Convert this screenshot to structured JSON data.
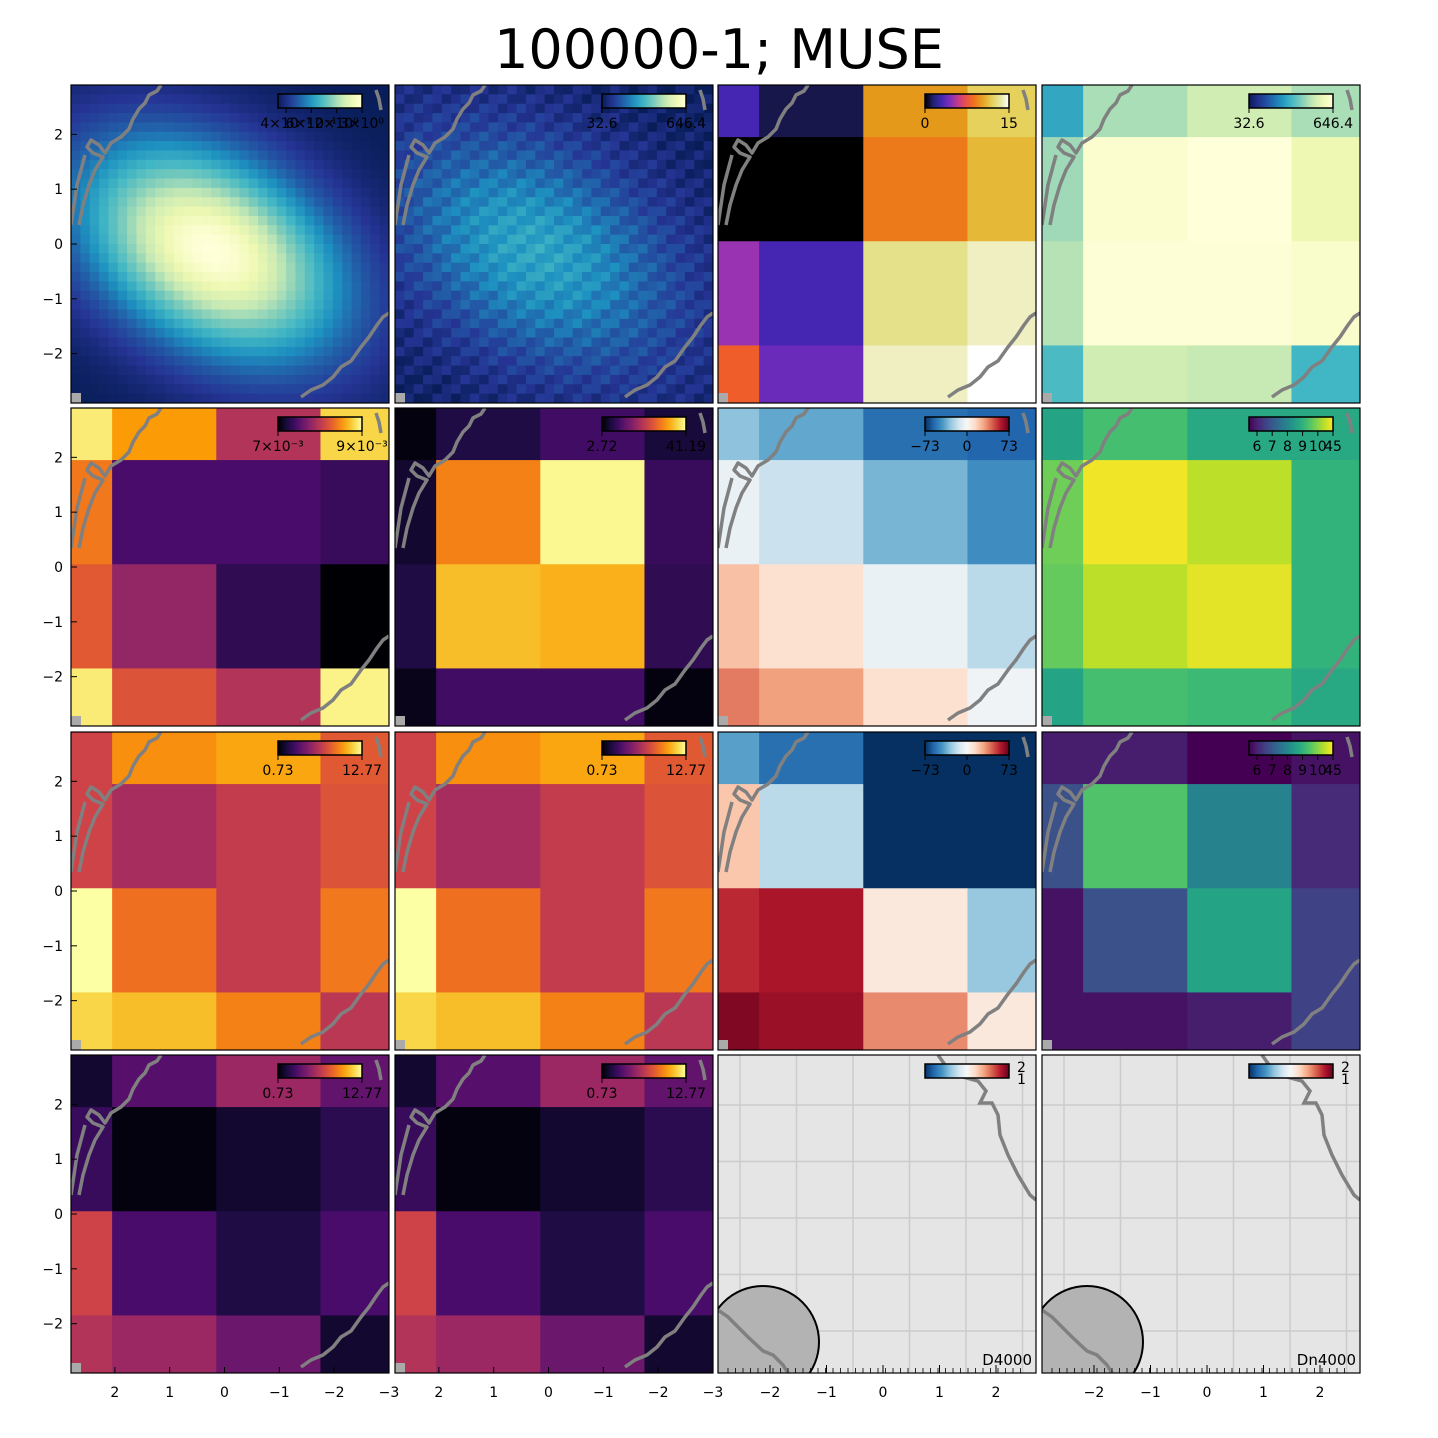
{
  "title": "100000-1; MUSE",
  "colors": {
    "contour": "#808080",
    "nodata_background": "#e5e5e5",
    "beam_fill": "#b3b3b3"
  },
  "axes": {
    "x_ticks": [
      2,
      1,
      0,
      -1,
      -2,
      -3
    ],
    "y_ticks": [
      2,
      1,
      0,
      -1,
      -2
    ],
    "x_ticks_last_row_nodata": [
      -2,
      -1,
      0,
      1,
      2
    ],
    "extent": [
      2.8,
      -3.0,
      -2.9,
      2.9
    ]
  },
  "chart_data": [
    {
      "type": "heatmap",
      "panel": "r0c0",
      "cmap": "YlGnBu_r",
      "source": "smooth",
      "colorbar": {
        "tick_labels": [
          "4×10⁻¹",
          "6×10⁻¹",
          "2×10⁰",
          "3×10⁰"
        ]
      },
      "note": "colorbar tick labels overlap in original"
    },
    {
      "type": "heatmap",
      "panel": "r0c1",
      "cmap": "YlGnBu_r",
      "source": "smooth_dim",
      "colorbar": {
        "tick_labels": [
          "32.6",
          "646.4"
        ]
      }
    },
    {
      "type": "heatmap",
      "panel": "r0c2",
      "cmap": "CMRmap",
      "colorbar": {
        "tick_labels": [
          "0",
          "15"
        ]
      },
      "x_edges": [
        2.8,
        2.05,
        0.15,
        -1.75,
        -3.0
      ],
      "y_edges": [
        2.9,
        1.95,
        0.05,
        -1.85,
        -2.9
      ],
      "values": [
        [
          3,
          1,
          10,
          12
        ],
        [
          0,
          0,
          9,
          11
        ],
        [
          5,
          3,
          13,
          14
        ],
        [
          8,
          4,
          14,
          15
        ]
      ]
    },
    {
      "type": "heatmap",
      "panel": "r0c3",
      "cmap": "YlGnBu_r",
      "colorbar": {
        "tick_labels": [
          "32.6",
          "646.4"
        ]
      },
      "x_edges": [
        2.8,
        2.05,
        0.15,
        -1.75,
        -3.0
      ],
      "y_edges": [
        2.9,
        1.95,
        0.05,
        -1.85,
        -2.9
      ],
      "values": [
        [
          0.45,
          0.7,
          0.78,
          0.7
        ],
        [
          0.68,
          0.97,
          1.0,
          0.88
        ],
        [
          0.72,
          0.99,
          0.99,
          0.96
        ],
        [
          0.52,
          0.78,
          0.75,
          0.5
        ]
      ]
    },
    {
      "type": "heatmap",
      "panel": "r1c0",
      "cmap": "inferno",
      "colorbar": {
        "tick_labels": [
          "7×10⁻³",
          "9×10⁻³"
        ]
      },
      "x_edges": [
        2.8,
        2.05,
        0.15,
        -1.75,
        -3.0
      ],
      "y_edges": [
        2.9,
        1.95,
        0.05,
        -1.85,
        -2.9
      ],
      "values": [
        [
          0.95,
          0.78,
          0.48,
          0.9
        ],
        [
          0.7,
          0.22,
          0.22,
          0.18
        ],
        [
          0.62,
          0.4,
          0.16,
          0.0
        ],
        [
          0.95,
          0.6,
          0.48,
          0.97
        ]
      ]
    },
    {
      "type": "heatmap",
      "panel": "r1c1",
      "cmap": "inferno",
      "colorbar": {
        "tick_labels": [
          "2.72",
          "41.19"
        ]
      },
      "x_edges": [
        2.8,
        2.05,
        0.15,
        -1.75,
        -3.0
      ],
      "y_edges": [
        2.9,
        1.95,
        0.05,
        -1.85,
        -2.9
      ],
      "values": [
        [
          0.02,
          0.12,
          0.2,
          0.1
        ],
        [
          0.08,
          0.72,
          0.98,
          0.18
        ],
        [
          0.12,
          0.85,
          0.82,
          0.16
        ],
        [
          0.04,
          0.2,
          0.2,
          0.02
        ]
      ]
    },
    {
      "type": "heatmap",
      "panel": "r1c2",
      "cmap": "RdBu_r",
      "colorbar": {
        "tick_labels": [
          "−73",
          "0",
          "73"
        ]
      },
      "x_edges": [
        2.8,
        2.05,
        0.15,
        -1.75,
        -3.0
      ],
      "y_edges": [
        2.9,
        1.95,
        0.05,
        -1.85,
        -2.9
      ],
      "values": [
        [
          -30,
          -38,
          -55,
          -58
        ],
        [
          -5,
          -16,
          -34,
          -46
        ],
        [
          22,
          12,
          -5,
          -20
        ],
        [
          38,
          30,
          12,
          -3
        ]
      ]
    },
    {
      "type": "heatmap",
      "panel": "r1c3",
      "cmap": "viridis",
      "colorbar": {
        "tick_labels": [
          "6",
          "7",
          "8",
          "9",
          "10",
          "45"
        ]
      },
      "note": "colorbar tick labels overlap in original",
      "x_edges": [
        2.8,
        2.05,
        0.15,
        -1.75,
        -3.0
      ],
      "y_edges": [
        2.9,
        1.95,
        0.05,
        -1.85,
        -2.9
      ],
      "values": [
        [
          0.58,
          0.7,
          0.6,
          0.6
        ],
        [
          0.78,
          0.98,
          0.9,
          0.65
        ],
        [
          0.76,
          0.9,
          0.96,
          0.65
        ],
        [
          0.58,
          0.7,
          0.68,
          0.6
        ]
      ]
    },
    {
      "type": "heatmap",
      "panel": "r2c0",
      "cmap": "inferno",
      "colorbar": {
        "tick_labels": [
          "0.73",
          "12.77"
        ]
      },
      "x_edges": [
        2.8,
        2.05,
        0.15,
        -1.75,
        -3.0
      ],
      "y_edges": [
        2.9,
        1.95,
        0.05,
        -1.85,
        -2.9
      ],
      "values": [
        [
          0.55,
          0.75,
          0.8,
          0.62
        ],
        [
          0.55,
          0.45,
          0.52,
          0.6
        ],
        [
          1.0,
          0.68,
          0.52,
          0.7
        ],
        [
          0.9,
          0.85,
          0.72,
          0.5
        ]
      ]
    },
    {
      "type": "heatmap",
      "panel": "r2c1",
      "cmap": "inferno",
      "colorbar": {
        "tick_labels": [
          "0.73",
          "12.77"
        ]
      },
      "x_edges": [
        2.8,
        2.05,
        0.15,
        -1.75,
        -3.0
      ],
      "y_edges": [
        2.9,
        1.95,
        0.05,
        -1.85,
        -2.9
      ],
      "values": [
        [
          0.55,
          0.75,
          0.8,
          0.62
        ],
        [
          0.55,
          0.45,
          0.52,
          0.6
        ],
        [
          1.0,
          0.68,
          0.52,
          0.7
        ],
        [
          0.9,
          0.85,
          0.72,
          0.5
        ]
      ]
    },
    {
      "type": "heatmap",
      "panel": "r2c2",
      "cmap": "RdBu_r",
      "colorbar": {
        "tick_labels": [
          "−73",
          "0",
          "73"
        ]
      },
      "x_edges": [
        2.8,
        2.05,
        0.15,
        -1.75,
        -3.0
      ],
      "y_edges": [
        2.9,
        1.95,
        0.05,
        -1.85,
        -2.9
      ],
      "values": [
        [
          -40,
          -55,
          -73,
          -73
        ],
        [
          20,
          -20,
          -73,
          -73
        ],
        [
          55,
          60,
          8,
          -28
        ],
        [
          68,
          63,
          35,
          8
        ]
      ]
    },
    {
      "type": "heatmap",
      "panel": "r2c3",
      "cmap": "viridis",
      "colorbar": {
        "tick_labels": [
          "6",
          "7",
          "8",
          "9",
          "10",
          "45"
        ]
      },
      "note": "colorbar tick labels overlap in original",
      "x_edges": [
        2.8,
        2.05,
        0.15,
        -1.75,
        -3.0
      ],
      "y_edges": [
        2.9,
        1.95,
        0.05,
        -1.85,
        -2.9
      ],
      "values": [
        [
          0.08,
          0.08,
          0.0,
          0.05
        ],
        [
          0.25,
          0.72,
          0.45,
          0.12
        ],
        [
          0.05,
          0.25,
          0.58,
          0.2
        ],
        [
          0.05,
          0.05,
          0.08,
          0.2
        ]
      ]
    },
    {
      "type": "heatmap",
      "panel": "r3c0",
      "cmap": "inferno",
      "colorbar": {
        "tick_labels": [
          "0.73",
          "12.77"
        ]
      },
      "x_edges": [
        2.8,
        2.05,
        0.15,
        -1.75,
        -3.0
      ],
      "y_edges": [
        2.9,
        1.95,
        0.05,
        -1.85,
        -2.9
      ],
      "values": [
        [
          0.08,
          0.25,
          0.42,
          0.28
        ],
        [
          0.18,
          0.02,
          0.08,
          0.15
        ],
        [
          0.55,
          0.22,
          0.12,
          0.22
        ],
        [
          0.48,
          0.42,
          0.3,
          0.08
        ]
      ]
    },
    {
      "type": "heatmap",
      "panel": "r3c1",
      "cmap": "inferno",
      "colorbar": {
        "tick_labels": [
          "0.73",
          "12.77"
        ]
      },
      "x_edges": [
        2.8,
        2.05,
        0.15,
        -1.75,
        -3.0
      ],
      "y_edges": [
        2.9,
        1.95,
        0.05,
        -1.85,
        -2.9
      ],
      "values": [
        [
          0.08,
          0.25,
          0.42,
          0.28
        ],
        [
          0.18,
          0.02,
          0.08,
          0.15
        ],
        [
          0.55,
          0.22,
          0.12,
          0.22
        ],
        [
          0.48,
          0.42,
          0.3,
          0.08
        ]
      ]
    },
    {
      "type": "heatmap",
      "panel": "r3c2",
      "cmap": "RdBu_r",
      "nodata": true,
      "label": "D4000",
      "colorbar": {
        "tick_labels": [
          "2",
          "1"
        ]
      }
    },
    {
      "type": "heatmap",
      "panel": "r3c3",
      "cmap": "RdBu_r",
      "nodata": true,
      "label": "Dn4000",
      "colorbar": {
        "tick_labels": [
          "2",
          "1"
        ]
      }
    }
  ]
}
